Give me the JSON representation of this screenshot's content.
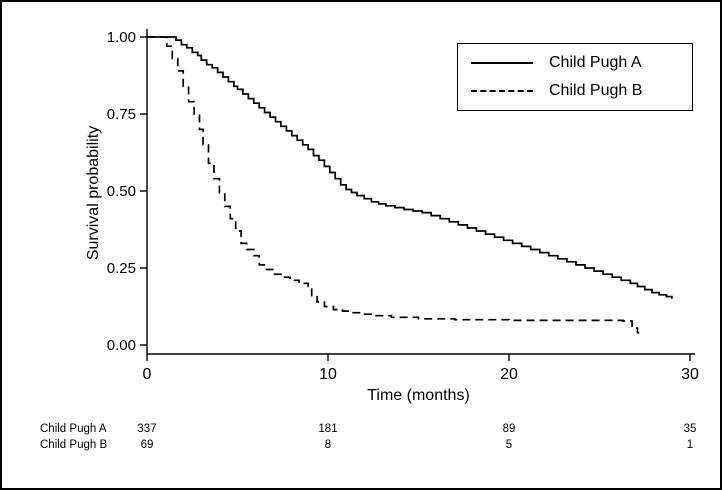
{
  "frame": {
    "background": "#ffffff",
    "border_color": "#000000"
  },
  "chart_data": {
    "type": "line",
    "subtype": "kaplan-meier-step",
    "xlabel": "Time (months)",
    "ylabel": "Survival probability",
    "xlim": [
      0,
      30
    ],
    "ylim": [
      0,
      1
    ],
    "x_ticks": [
      "0",
      "10",
      "20",
      "30"
    ],
    "y_ticks": [
      "0.00",
      "0.25",
      "0.50",
      "0.75",
      "1.00"
    ],
    "grid": false,
    "line_color": "#000000",
    "legend": {
      "position": "top-right",
      "entries": [
        {
          "label": "Child Pugh A",
          "dash": "solid"
        },
        {
          "label": "Child Pugh B",
          "dash": "dashed"
        }
      ]
    },
    "series": [
      {
        "name": "Child Pugh A",
        "style": "solid",
        "color": "#000000",
        "points": [
          [
            0,
            1.0
          ],
          [
            1.3,
            1.0
          ],
          [
            1.6,
            0.99
          ],
          [
            1.9,
            0.975
          ],
          [
            2.2,
            0.965
          ],
          [
            2.5,
            0.95
          ],
          [
            2.8,
            0.94
          ],
          [
            3.0,
            0.925
          ],
          [
            3.3,
            0.91
          ],
          [
            3.6,
            0.9
          ],
          [
            3.9,
            0.885
          ],
          [
            4.2,
            0.87
          ],
          [
            4.5,
            0.855
          ],
          [
            4.8,
            0.84
          ],
          [
            5.0,
            0.83
          ],
          [
            5.3,
            0.815
          ],
          [
            5.6,
            0.8
          ],
          [
            5.9,
            0.785
          ],
          [
            6.2,
            0.77
          ],
          [
            6.5,
            0.755
          ],
          [
            6.8,
            0.74
          ],
          [
            7.1,
            0.725
          ],
          [
            7.4,
            0.71
          ],
          [
            7.7,
            0.695
          ],
          [
            8.0,
            0.68
          ],
          [
            8.3,
            0.665
          ],
          [
            8.6,
            0.65
          ],
          [
            8.9,
            0.635
          ],
          [
            9.2,
            0.615
          ],
          [
            9.5,
            0.6
          ],
          [
            9.8,
            0.58
          ],
          [
            10.1,
            0.56
          ],
          [
            10.4,
            0.54
          ],
          [
            10.7,
            0.52
          ],
          [
            11.0,
            0.505
          ],
          [
            11.3,
            0.495
          ],
          [
            11.6,
            0.485
          ],
          [
            12.0,
            0.475
          ],
          [
            12.4,
            0.465
          ],
          [
            12.8,
            0.458
          ],
          [
            13.2,
            0.452
          ],
          [
            13.7,
            0.446
          ],
          [
            14.2,
            0.44
          ],
          [
            14.7,
            0.435
          ],
          [
            15.2,
            0.43
          ],
          [
            15.7,
            0.42
          ],
          [
            16.2,
            0.41
          ],
          [
            16.7,
            0.4
          ],
          [
            17.2,
            0.39
          ],
          [
            17.7,
            0.38
          ],
          [
            18.2,
            0.37
          ],
          [
            18.7,
            0.36
          ],
          [
            19.2,
            0.35
          ],
          [
            19.7,
            0.34
          ],
          [
            20.2,
            0.33
          ],
          [
            20.7,
            0.32
          ],
          [
            21.2,
            0.31
          ],
          [
            21.7,
            0.3
          ],
          [
            22.2,
            0.29
          ],
          [
            22.7,
            0.28
          ],
          [
            23.2,
            0.27
          ],
          [
            23.7,
            0.26
          ],
          [
            24.2,
            0.25
          ],
          [
            24.7,
            0.24
          ],
          [
            25.2,
            0.23
          ],
          [
            25.7,
            0.22
          ],
          [
            26.2,
            0.21
          ],
          [
            26.7,
            0.2
          ],
          [
            27.1,
            0.19
          ],
          [
            27.5,
            0.18
          ],
          [
            27.9,
            0.17
          ],
          [
            28.3,
            0.163
          ],
          [
            28.7,
            0.157
          ],
          [
            29.0,
            0.15
          ]
        ]
      },
      {
        "name": "Child Pugh B",
        "style": "dashed",
        "color": "#000000",
        "points": [
          [
            0,
            1.0
          ],
          [
            0.9,
            1.0
          ],
          [
            1.1,
            0.97
          ],
          [
            1.4,
            0.93
          ],
          [
            1.7,
            0.89
          ],
          [
            2.0,
            0.84
          ],
          [
            2.3,
            0.79
          ],
          [
            2.6,
            0.75
          ],
          [
            2.9,
            0.7
          ],
          [
            3.1,
            0.65
          ],
          [
            3.4,
            0.59
          ],
          [
            3.7,
            0.54
          ],
          [
            4.0,
            0.49
          ],
          [
            4.3,
            0.45
          ],
          [
            4.6,
            0.41
          ],
          [
            4.9,
            0.37
          ],
          [
            5.2,
            0.33
          ],
          [
            5.5,
            0.31
          ],
          [
            5.9,
            0.29
          ],
          [
            6.2,
            0.26
          ],
          [
            6.6,
            0.245
          ],
          [
            7.0,
            0.23
          ],
          [
            7.4,
            0.22
          ],
          [
            7.9,
            0.21
          ],
          [
            8.4,
            0.2
          ],
          [
            8.9,
            0.19
          ],
          [
            9.1,
            0.16
          ],
          [
            9.4,
            0.14
          ],
          [
            9.8,
            0.125
          ],
          [
            10.3,
            0.115
          ],
          [
            10.8,
            0.11
          ],
          [
            11.3,
            0.105
          ],
          [
            11.9,
            0.1
          ],
          [
            12.6,
            0.095
          ],
          [
            13.5,
            0.09
          ],
          [
            15.0,
            0.085
          ],
          [
            17.0,
            0.082
          ],
          [
            20.0,
            0.08
          ],
          [
            24.0,
            0.08
          ],
          [
            26.3,
            0.078
          ],
          [
            26.8,
            0.055
          ],
          [
            27.1,
            0.04
          ],
          [
            27.4,
            0.04
          ]
        ]
      }
    ],
    "risk_table": {
      "times": [
        0,
        10,
        20,
        30
      ],
      "rows": [
        {
          "label": "Child Pugh A",
          "counts": [
            "337",
            "181",
            "89",
            "35"
          ]
        },
        {
          "label": "Child Pugh B",
          "counts": [
            "69",
            "8",
            "5",
            "1"
          ]
        }
      ]
    }
  }
}
